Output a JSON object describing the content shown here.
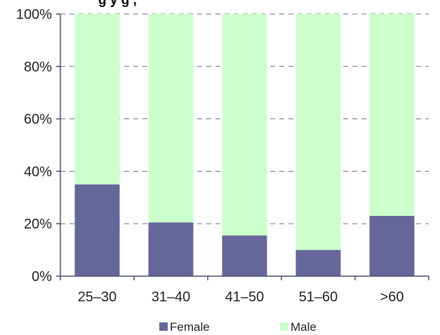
{
  "chart_data": {
    "type": "bar",
    "stacked": true,
    "title": "",
    "categories": [
      "25–30",
      "31–40",
      "41–50",
      "51–60",
      ">60"
    ],
    "series": [
      {
        "name": "Female",
        "values": [
          35,
          20.5,
          15.5,
          10,
          23
        ],
        "color": "#666699"
      },
      {
        "name": "Male",
        "values": [
          65,
          79.5,
          84.5,
          90,
          77
        ],
        "color": "#ccffcc"
      }
    ],
    "y_tick_labels": [
      "0%",
      "20%",
      "40%",
      "60%",
      "80%",
      "100%"
    ],
    "ylim": [
      0,
      100
    ],
    "y_unit": "%",
    "grid": "dashed horizontal",
    "legend_position": "bottom",
    "xlabel": "",
    "ylabel": ""
  },
  "title_partial": "g                    y g      ,"
}
